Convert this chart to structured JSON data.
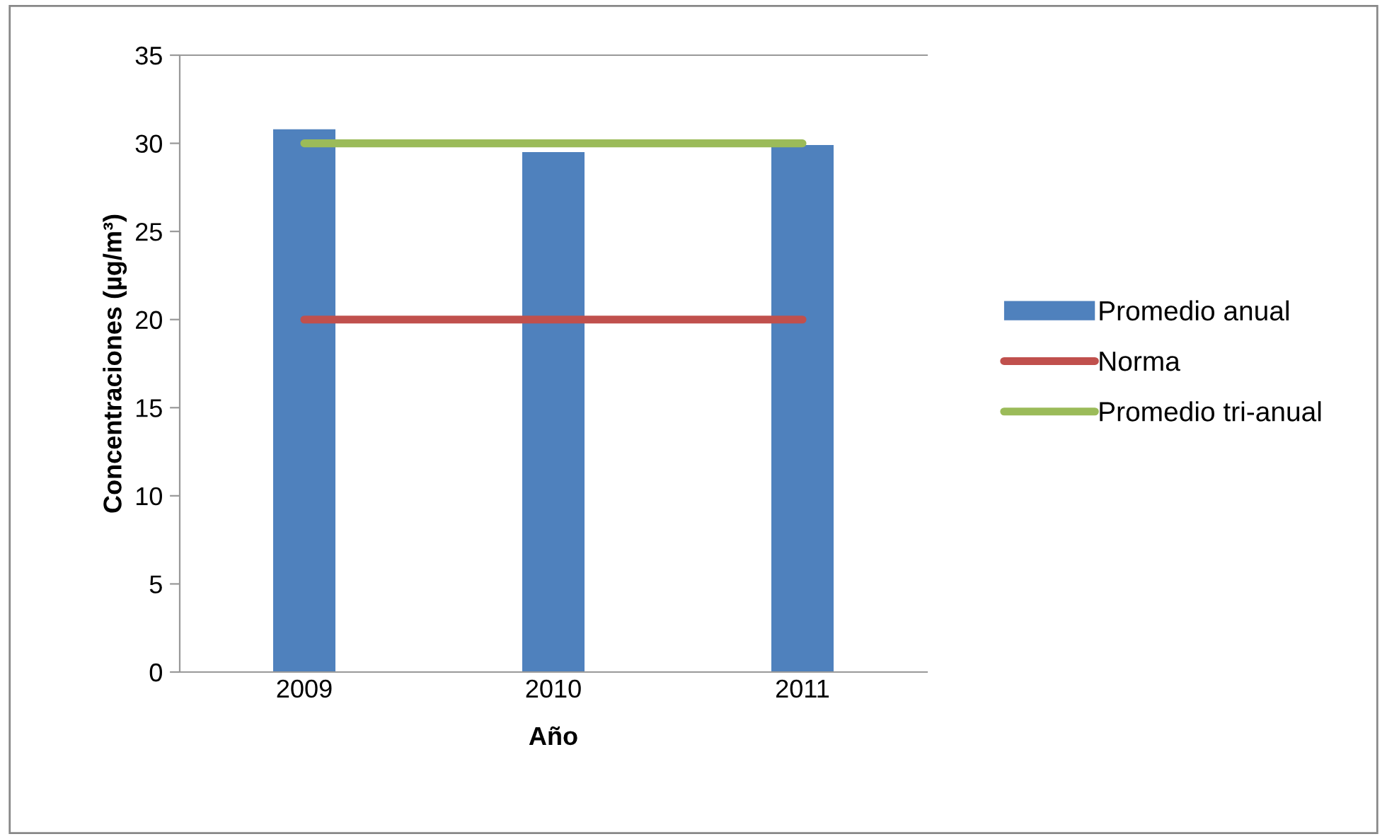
{
  "chart_data": {
    "type": "bar",
    "xlabel": "Año",
    "ylabel": "Concentraciones (µg/m³)",
    "categories": [
      "2009",
      "2010",
      "2011"
    ],
    "series": [
      {
        "name": "Promedio anual",
        "color": "#4f81bd",
        "values": [
          30.8,
          29.5,
          29.9
        ]
      },
      {
        "name": "Norma",
        "type": "line",
        "color": "#c0504d",
        "values": [
          20,
          20,
          20
        ]
      },
      {
        "name": "Promedio tri-anual",
        "type": "line",
        "color": "#9bbb59",
        "values": [
          30,
          30,
          30
        ]
      }
    ],
    "ylim": [
      0,
      35
    ],
    "yticks": [
      0,
      5,
      10,
      15,
      20,
      25,
      30,
      35
    ],
    "grid": false,
    "legend": "right",
    "marker": "none"
  }
}
